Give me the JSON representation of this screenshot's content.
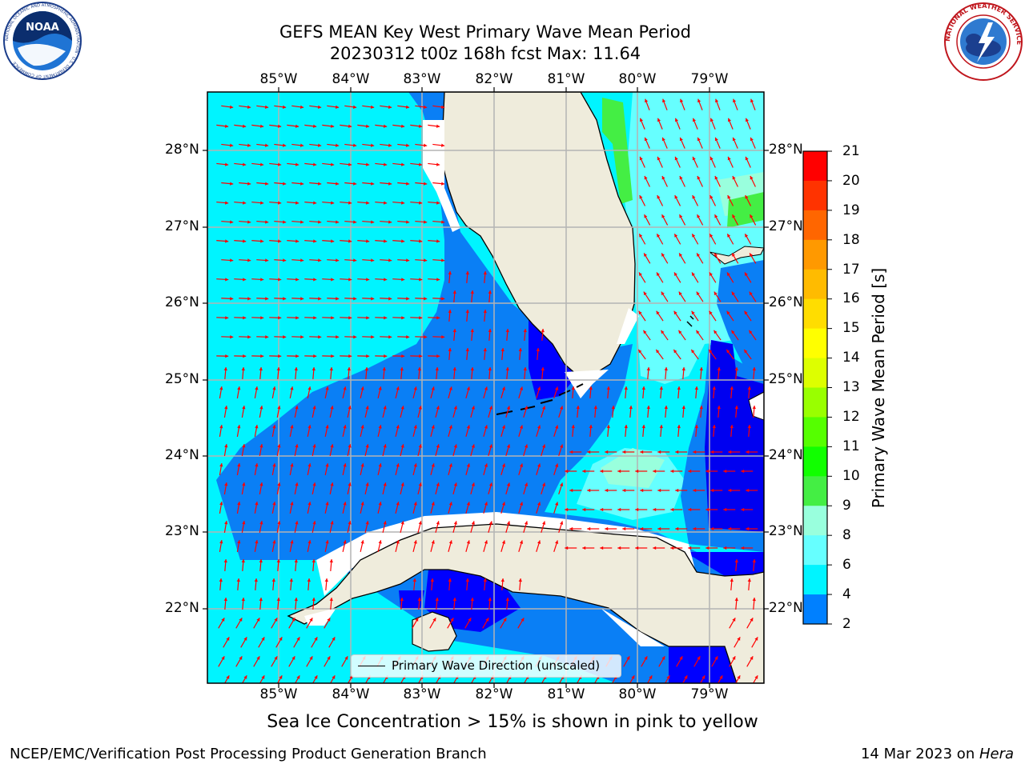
{
  "title": {
    "line1": "GEFS MEAN Key West Primary Wave Mean Period",
    "line2": "20230312 t00z 168h fcst   Max: 11.64"
  },
  "map": {
    "lon_labels": [
      "85°W",
      "84°W",
      "83°W",
      "82°W",
      "81°W",
      "80°W",
      "79°W"
    ],
    "lat_labels": [
      "28°N",
      "27°N",
      "26°N",
      "25°N",
      "24°N",
      "23°N",
      "22°N"
    ],
    "land_color": "#efecdc",
    "arrow_color": "#ff0000",
    "grid": true,
    "legend": {
      "label": "Primary Wave Direction (unscaled)",
      "placement": "bottom-center"
    }
  },
  "colorbar": {
    "title": "Primary Wave Mean Period [s]",
    "ticks": [
      "21",
      "20",
      "19",
      "18",
      "17",
      "16",
      "15",
      "14",
      "13",
      "12",
      "11",
      "10",
      "9",
      "8",
      "6",
      "4",
      "2"
    ],
    "colors": [
      "#ff0000",
      "#ff3300",
      "#ff6600",
      "#ff9900",
      "#ffbb00",
      "#ffdd00",
      "#ffff00",
      "#ddff00",
      "#99ff00",
      "#55ff00",
      "#11ff00",
      "#44ee44",
      "#99ffdd",
      "#66ffff",
      "#00f4ff",
      "#0080ff",
      "#0000ff"
    ]
  },
  "caption": "Sea Ice Concentration > 15% is shown in pink to yellow",
  "footer": {
    "left": "NCEP/EMC/Verification Post Processing Product Generation Branch",
    "date": "14 Mar 2023 on ",
    "host": "Hera"
  },
  "logos": {
    "noaa": "NOAA",
    "noaa_ring": "NATIONAL OCEANIC AND ATMOSPHERIC ADMINISTRATION · U.S. DEPARTMENT OF COMMERCE",
    "nws": "NATIONAL WEATHER SERVICE"
  }
}
